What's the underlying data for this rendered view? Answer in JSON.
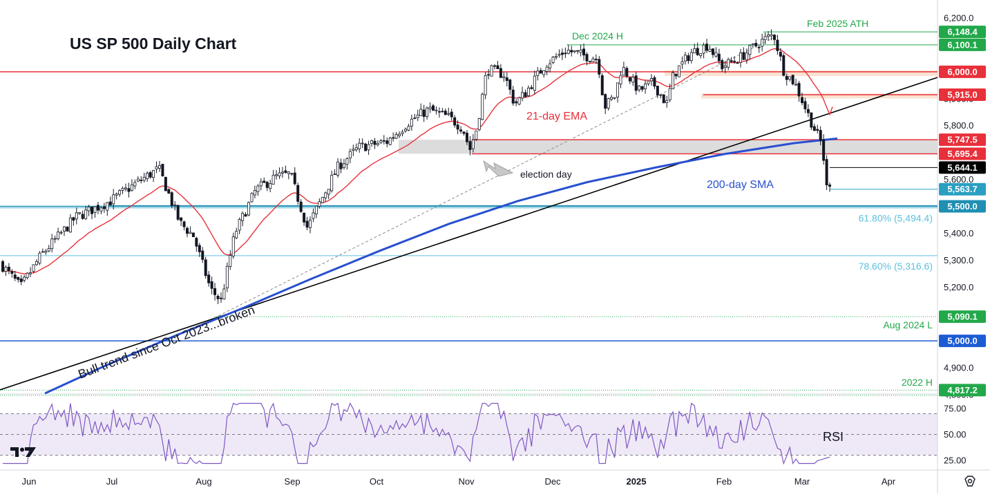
{
  "chart_data": {
    "type": "candlestick",
    "title": "US SP 500 Daily Chart",
    "y_axis": {
      "range": [
        4790,
        6230
      ],
      "ticks": [
        "6,200.0",
        "6,100.0",
        "6,000.0",
        "5,900.0",
        "5,800.0",
        "5,700.0",
        "5,600.0",
        "5,500.0",
        "5,400.0",
        "5,300.0",
        "5,200.0",
        "5,100.0",
        "5,000.0",
        "4,900.0",
        "4,800.0"
      ]
    },
    "x_axis": {
      "ticks": [
        "Jun",
        "Jul",
        "Aug",
        "Sep",
        "Oct",
        "Nov",
        "Dec",
        "2025",
        "Feb",
        "Mar",
        "Apr"
      ]
    },
    "price_levels": [
      {
        "label": "6,148.4",
        "value": 6148.4,
        "color": "#22a84a",
        "annotation": "Feb 2025 ATH"
      },
      {
        "label": "6,100.1",
        "value": 6100.1,
        "color": "#22a84a",
        "annotation": "Dec 2024 H"
      },
      {
        "label": "6,000.0",
        "value": 6000.0,
        "color": "#e8303a",
        "annotation": ""
      },
      {
        "label": "5,915.0",
        "value": 5915.0,
        "color": "#e8303a",
        "annotation": ""
      },
      {
        "label": "5,747.5",
        "value": 5747.5,
        "color": "#e8303a",
        "annotation": ""
      },
      {
        "label": "5,695.4",
        "value": 5695.4,
        "color": "#e8303a",
        "annotation": ""
      },
      {
        "label": "5,644.1",
        "value": 5644.1,
        "color": "#000000",
        "annotation": ""
      },
      {
        "label": "5,563.7",
        "value": 5563.7,
        "color": "#2a9fc1",
        "annotation": ""
      },
      {
        "label": "5,500.0",
        "value": 5500.0,
        "color": "#1f8fb3",
        "annotation": ""
      },
      {
        "label": "5,090.1",
        "value": 5090.1,
        "color": "#22a84a",
        "annotation": "Aug 2024 L"
      },
      {
        "label": "5,000.0",
        "value": 5000.0,
        "color": "#1c5bd4",
        "annotation": ""
      },
      {
        "label": "4,817.2",
        "value": 4817.2,
        "color": "#22a84a",
        "annotation": "2022 H"
      }
    ],
    "fib_levels": [
      {
        "label": "61.80% (5,494.4)",
        "value": 5494.4
      },
      {
        "label": "78.60% (5,316.6)",
        "value": 5316.6
      }
    ],
    "annotations": {
      "ema": "21-day EMA",
      "sma": "200-day SMA",
      "election": "election day",
      "trend": "Bull trend since Oct 2023...broken"
    },
    "rsi": {
      "label": "RSI",
      "ticks": [
        "75.00",
        "50.00",
        "25.00"
      ],
      "overbought": 70,
      "oversold": 30
    },
    "logo": "TV"
  },
  "colors": {
    "up": "#ffffff",
    "down": "#131722",
    "ema": "#e8303a",
    "sma": "#2850d0",
    "trend": "#000000",
    "rsi": "#7e57c2"
  }
}
